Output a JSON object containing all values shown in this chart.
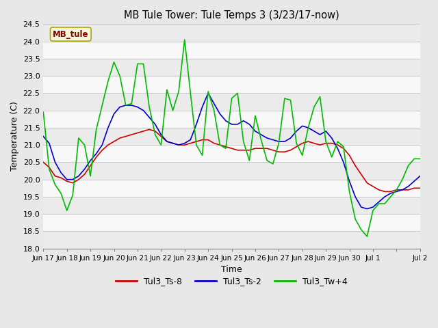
{
  "title": "MB Tule Tower: Tule Temps 3 (3/23/17-now)",
  "xlabel": "Time",
  "ylabel": "Temperature (C)",
  "ylim": [
    18.0,
    24.5
  ],
  "yticks": [
    18.0,
    18.5,
    19.0,
    19.5,
    20.0,
    20.5,
    21.0,
    21.5,
    22.0,
    22.5,
    23.0,
    23.5,
    24.0,
    24.5
  ],
  "fig_bg_color": "#e8e8e8",
  "plot_bg_color": "#ffffff",
  "grid_color": "#cccccc",
  "legend_label_box": "MB_tule",
  "legend_box_facecolor": "#f5f5dc",
  "legend_box_edgecolor": "#aaaa00",
  "legend_box_textcolor": "#880000",
  "series_colors": [
    "#cc0000",
    "#0000cc",
    "#00bb00"
  ],
  "series_labels": [
    "Tul3_Ts-8",
    "Tul3_Ts-2",
    "Tul3_Tw+4"
  ],
  "linewidth": 1.2,
  "x_tick_positions": [
    0,
    1,
    2,
    3,
    4,
    5,
    6,
    7,
    8,
    9,
    10,
    11,
    12,
    13,
    14,
    15,
    16
  ],
  "x_tick_labels": [
    "Jun 17",
    "Jun 18",
    "Jun 19",
    "Jun 20",
    "Jun 21",
    "Jun 22",
    "Jun 23",
    "Jun 24",
    "Jun 25",
    "Jun 26",
    "Jun 27",
    "Jun 28",
    "Jun 29",
    "Jun 30",
    "Jul 1",
    "",
    "Jul 2"
  ],
  "red_data": [
    20.5,
    20.35,
    20.1,
    20.05,
    19.95,
    19.9,
    20.0,
    20.15,
    20.4,
    20.65,
    20.85,
    21.0,
    21.1,
    21.2,
    21.25,
    21.3,
    21.35,
    21.4,
    21.45,
    21.4,
    21.25,
    21.1,
    21.05,
    21.0,
    21.0,
    21.05,
    21.1,
    21.15,
    21.15,
    21.05,
    21.0,
    20.95,
    20.9,
    20.85,
    20.85,
    20.85,
    20.9,
    20.9,
    20.9,
    20.85,
    20.8,
    20.8,
    20.85,
    20.95,
    21.05,
    21.1,
    21.05,
    21.0,
    21.05,
    21.05,
    21.0,
    20.9,
    20.7,
    20.4,
    20.15,
    19.9,
    19.8,
    19.7,
    19.65,
    19.65,
    19.7,
    19.7,
    19.7,
    19.75,
    19.75
  ],
  "blue_data": [
    21.25,
    21.05,
    20.5,
    20.2,
    20.0,
    20.0,
    20.1,
    20.3,
    20.55,
    20.75,
    21.0,
    21.5,
    21.9,
    22.1,
    22.15,
    22.15,
    22.1,
    22.0,
    21.8,
    21.6,
    21.3,
    21.1,
    21.05,
    21.0,
    21.05,
    21.15,
    21.6,
    22.1,
    22.5,
    22.2,
    21.9,
    21.7,
    21.6,
    21.6,
    21.7,
    21.6,
    21.4,
    21.3,
    21.2,
    21.15,
    21.1,
    21.1,
    21.2,
    21.4,
    21.55,
    21.5,
    21.4,
    21.3,
    21.4,
    21.2,
    20.9,
    20.5,
    19.95,
    19.5,
    19.2,
    19.15,
    19.2,
    19.35,
    19.5,
    19.6,
    19.65,
    19.7,
    19.8,
    19.95,
    20.1
  ],
  "green_data": [
    21.95,
    20.3,
    19.85,
    19.6,
    19.1,
    19.55,
    21.2,
    21.0,
    20.1,
    21.45,
    22.15,
    22.85,
    23.4,
    23.0,
    22.15,
    22.2,
    23.35,
    23.35,
    22.1,
    21.3,
    21.0,
    22.6,
    22.0,
    22.55,
    24.05,
    22.5,
    21.0,
    20.7,
    22.55,
    22.0,
    21.0,
    20.9,
    22.35,
    22.5,
    21.1,
    20.55,
    21.85,
    21.15,
    20.55,
    20.45,
    21.05,
    22.35,
    22.3,
    21.05,
    20.7,
    21.5,
    22.1,
    22.4,
    21.1,
    20.65,
    21.1,
    20.95,
    19.65,
    18.85,
    18.55,
    18.35,
    19.1,
    19.3,
    19.3,
    19.5,
    19.7,
    20.0,
    20.4,
    20.6,
    20.6
  ]
}
